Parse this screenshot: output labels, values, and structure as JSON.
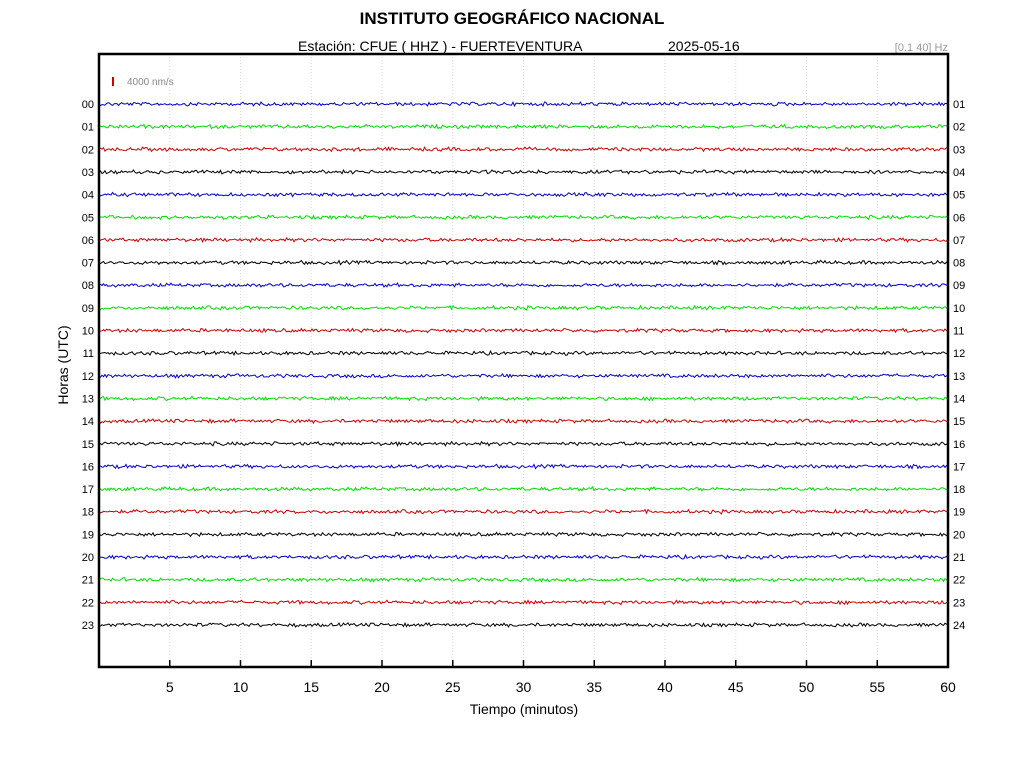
{
  "header": {
    "title": "INSTITUTO GEOGRÁFICO NACIONAL",
    "subtitle": "Estación:  CFUE ( HHZ ) - FUERTEVENTURA",
    "date": "2025-05-16",
    "filter": "[0.1 40] Hz"
  },
  "chart_data": {
    "type": "line",
    "title": "INSTITUTO GEOGRÁFICO NACIONAL",
    "xlabel": "Tiempo (minutos)",
    "ylabel": "Horas (UTC)",
    "xlim": [
      0,
      60
    ],
    "x_ticks": [
      "5",
      "10",
      "15",
      "20",
      "25",
      "30",
      "35",
      "40",
      "45",
      "50",
      "55",
      "60"
    ],
    "scale_label": "4000 nm/s",
    "grid": true,
    "series_colors": [
      "#0000cc",
      "#00e000",
      "#cc0000",
      "#000000"
    ],
    "scale_color": "#cc0000",
    "rows": [
      {
        "left": "00",
        "right": "01"
      },
      {
        "left": "01",
        "right": "02"
      },
      {
        "left": "02",
        "right": "03"
      },
      {
        "left": "03",
        "right": "04"
      },
      {
        "left": "04",
        "right": "05"
      },
      {
        "left": "05",
        "right": "06"
      },
      {
        "left": "06",
        "right": "07"
      },
      {
        "left": "07",
        "right": "08"
      },
      {
        "left": "08",
        "right": "09"
      },
      {
        "left": "09",
        "right": "10"
      },
      {
        "left": "10",
        "right": "11"
      },
      {
        "left": "11",
        "right": "12"
      },
      {
        "left": "12",
        "right": "13"
      },
      {
        "left": "13",
        "right": "14"
      },
      {
        "left": "14",
        "right": "15"
      },
      {
        "left": "15",
        "right": "16"
      },
      {
        "left": "16",
        "right": "17"
      },
      {
        "left": "17",
        "right": "18"
      },
      {
        "left": "18",
        "right": "19"
      },
      {
        "left": "19",
        "right": "20"
      },
      {
        "left": "20",
        "right": "21"
      },
      {
        "left": "21",
        "right": "22"
      },
      {
        "left": "22",
        "right": "23"
      },
      {
        "left": "23",
        "right": "24"
      }
    ]
  }
}
